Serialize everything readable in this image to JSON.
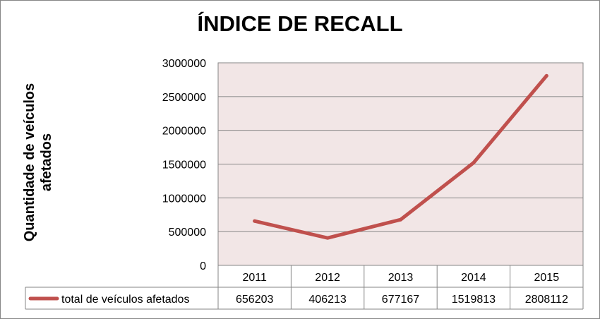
{
  "chart_data": {
    "type": "line",
    "title": "ÍNDICE DE RECALL",
    "ylabel": "Quantidade de veículos afetados",
    "ylabel_lines": [
      "Quantidade de veículos",
      "afetados"
    ],
    "xlabel": "",
    "categories": [
      "2011",
      "2012",
      "2013",
      "2014",
      "2015"
    ],
    "series": [
      {
        "name": "total de veículos afetados",
        "values": [
          656203,
          406213,
          677167,
          1519813,
          2808112
        ],
        "color": "#C0504D"
      }
    ],
    "ylim": [
      0,
      3000000
    ],
    "yticks": [
      0,
      500000,
      1000000,
      1500000,
      2000000,
      2500000,
      3000000
    ],
    "grid": true,
    "plot_background": "#F2E6E6",
    "data_table": true
  }
}
